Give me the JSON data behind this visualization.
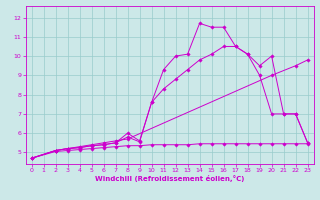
{
  "xlabel": "Windchill (Refroidissement éolien,°C)",
  "bg_color": "#cce8e8",
  "line_color": "#cc00cc",
  "grid_color": "#99cccc",
  "xlim": [
    -0.5,
    23.5
  ],
  "ylim": [
    4.4,
    12.6
  ],
  "yticks": [
    5,
    6,
    7,
    8,
    9,
    10,
    11,
    12
  ],
  "xticks": [
    0,
    1,
    2,
    3,
    4,
    5,
    6,
    7,
    8,
    9,
    10,
    11,
    12,
    13,
    14,
    15,
    16,
    17,
    18,
    19,
    20,
    21,
    22,
    23
  ],
  "series": [
    {
      "x": [
        0,
        2,
        3,
        4,
        5,
        6,
        7,
        8,
        9,
        10,
        11,
        12,
        13,
        14,
        15,
        16,
        17,
        18,
        19,
        20,
        21,
        22,
        23
      ],
      "y": [
        4.7,
        5.1,
        5.2,
        5.25,
        5.35,
        5.4,
        5.5,
        6.0,
        5.6,
        7.6,
        9.3,
        10.0,
        10.1,
        11.7,
        11.5,
        11.5,
        10.5,
        10.1,
        9.0,
        7.0,
        7.0,
        7.0,
        5.5
      ]
    },
    {
      "x": [
        0,
        2,
        3,
        4,
        5,
        6,
        7,
        8,
        9,
        10,
        11,
        12,
        13,
        14,
        15,
        16,
        17,
        18,
        19,
        20,
        21,
        22,
        23
      ],
      "y": [
        4.7,
        5.1,
        5.2,
        5.25,
        5.35,
        5.4,
        5.5,
        5.8,
        5.55,
        7.6,
        8.3,
        8.8,
        9.3,
        9.8,
        10.1,
        10.5,
        10.5,
        10.1,
        9.5,
        10.0,
        7.0,
        7.0,
        5.5
      ]
    },
    {
      "x": [
        0,
        2,
        3,
        4,
        5,
        6,
        7,
        8,
        20,
        22,
        23
      ],
      "y": [
        4.7,
        5.1,
        5.2,
        5.3,
        5.4,
        5.5,
        5.6,
        5.7,
        9.0,
        9.5,
        9.8
      ]
    },
    {
      "x": [
        0,
        2,
        3,
        4,
        5,
        6,
        7,
        8,
        9,
        10,
        11,
        12,
        13,
        14,
        15,
        16,
        17,
        18,
        19,
        20,
        21,
        22,
        23
      ],
      "y": [
        4.7,
        5.05,
        5.1,
        5.15,
        5.2,
        5.25,
        5.3,
        5.35,
        5.35,
        5.4,
        5.4,
        5.4,
        5.4,
        5.45,
        5.45,
        5.45,
        5.45,
        5.45,
        5.45,
        5.45,
        5.45,
        5.45,
        5.45
      ]
    }
  ]
}
